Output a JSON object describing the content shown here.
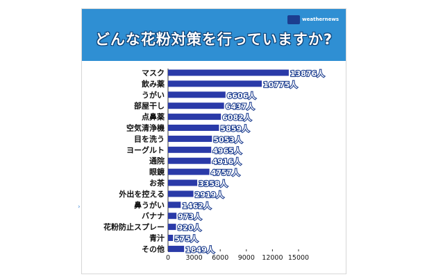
{
  "page": {
    "title": "どんな花粉対策を行っていますか?",
    "logo_text": "weathernews",
    "side_mark": "›"
  },
  "colors": {
    "header": "#2f8fd3",
    "bar": "#2a3aa8",
    "label_outline": "#1c3d8f"
  },
  "chart_data": {
    "type": "bar",
    "orientation": "horizontal",
    "title": "どんな花粉対策を行っていますか?",
    "categories": [
      "マスク",
      "飲み薬",
      "うがい",
      "部屋干し",
      "点鼻薬",
      "空気清浄機",
      "目を洗う",
      "ヨーグルト",
      "通院",
      "眼鏡",
      "お茶",
      "外出を控える",
      "鼻うがい",
      "バナナ",
      "花粉防止スプレー",
      "青汁",
      "その他"
    ],
    "values": [
      13876,
      10775,
      6606,
      6437,
      6082,
      5859,
      5053,
      4965,
      4916,
      4757,
      3358,
      2919,
      1462,
      973,
      920,
      575,
      1849
    ],
    "value_labels": [
      "13876人",
      "10775人",
      "6606人",
      "6437人",
      "6082人",
      "5859人",
      "5053人",
      "4965人",
      "4916人",
      "4757人",
      "3358人",
      "2919人",
      "1462人",
      "973人",
      "920人",
      "575人",
      "1849人"
    ],
    "xlim": [
      0,
      15000
    ],
    "xticks": [
      "0",
      "3000",
      "6000",
      "9000",
      "12000",
      "15000"
    ],
    "unit": "人",
    "xlabel": "",
    "ylabel": "",
    "grid": false,
    "legend": "none"
  }
}
